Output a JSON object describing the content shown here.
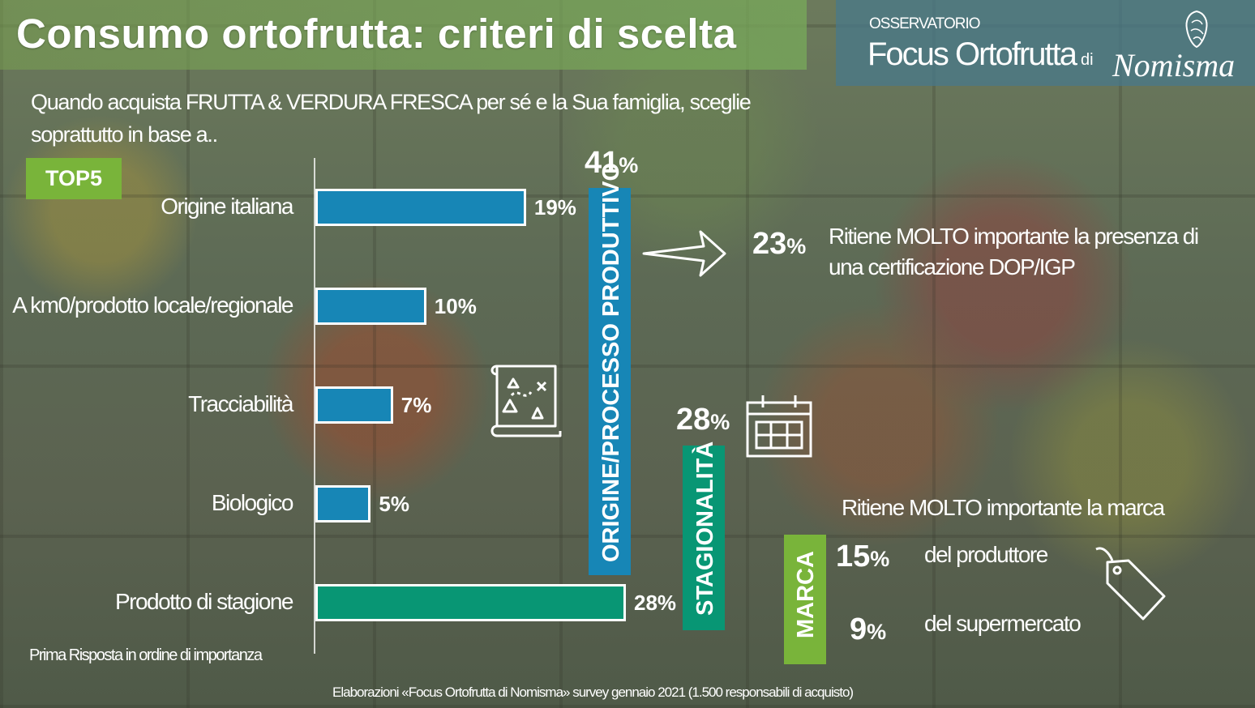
{
  "title": "Consumo ortofrutta: criteri di scelta",
  "brand": {
    "small": "OSSERVATORIO",
    "big": "Focus Ortofrutta",
    "di": "di",
    "logo": "Nomisma",
    "crest_icon": "lion-crest-icon"
  },
  "question": "Quando acquista FRUTTA & VERDURA FRESCA per sé e la Sua famiglia, sceglie soprattutto in base a..",
  "badge": "TOP5",
  "footnote": "Prima Risposta in ordine di importanza",
  "source": "Elaborazioni «Focus Ortofrutta di Nomisma» survey gennaio 2021 (1.500 responsabili di acquisto)",
  "colors": {
    "blue": "#1786b6",
    "teal": "#089674",
    "green": "#79b43a"
  },
  "chart_data": {
    "type": "bar",
    "orientation": "horizontal",
    "categories": [
      "Origine italiana",
      "A km0/prodotto locale/regionale",
      "Tracciabilità",
      "Biologico",
      "Prodotto di stagione"
    ],
    "values": [
      19,
      10,
      7,
      5,
      28
    ],
    "value_labels": [
      "19%",
      "10%",
      "7%",
      "5%",
      "28%"
    ],
    "bar_colors": [
      "#1786b6",
      "#1786b6",
      "#1786b6",
      "#1786b6",
      "#089674"
    ],
    "xlim": [
      0,
      30
    ]
  },
  "groups": {
    "origine": {
      "label": "ORIGINE/PROCESSO PRODUTTIVO",
      "total_num": "41",
      "total_pct": "%"
    },
    "stagionalita": {
      "label": "STAGIONALITÀ",
      "total_num": "28",
      "total_pct": "%"
    },
    "marca": {
      "label": "MARCA"
    }
  },
  "dop": {
    "num": "23",
    "pct": "%",
    "text": "Ritiene MOLTO importante la presenza di una certificazione DOP/IGP"
  },
  "marca_notes": {
    "heading": "Ritiene MOLTO importante la  marca",
    "rows": [
      {
        "num": "15",
        "pct": "%",
        "text": "del produttore"
      },
      {
        "num": "9",
        "pct": "%",
        "text": "del supermercato"
      }
    ]
  },
  "icons": [
    "map-icon",
    "calendar-icon",
    "price-tag-icon",
    "arrow-right-icon"
  ]
}
